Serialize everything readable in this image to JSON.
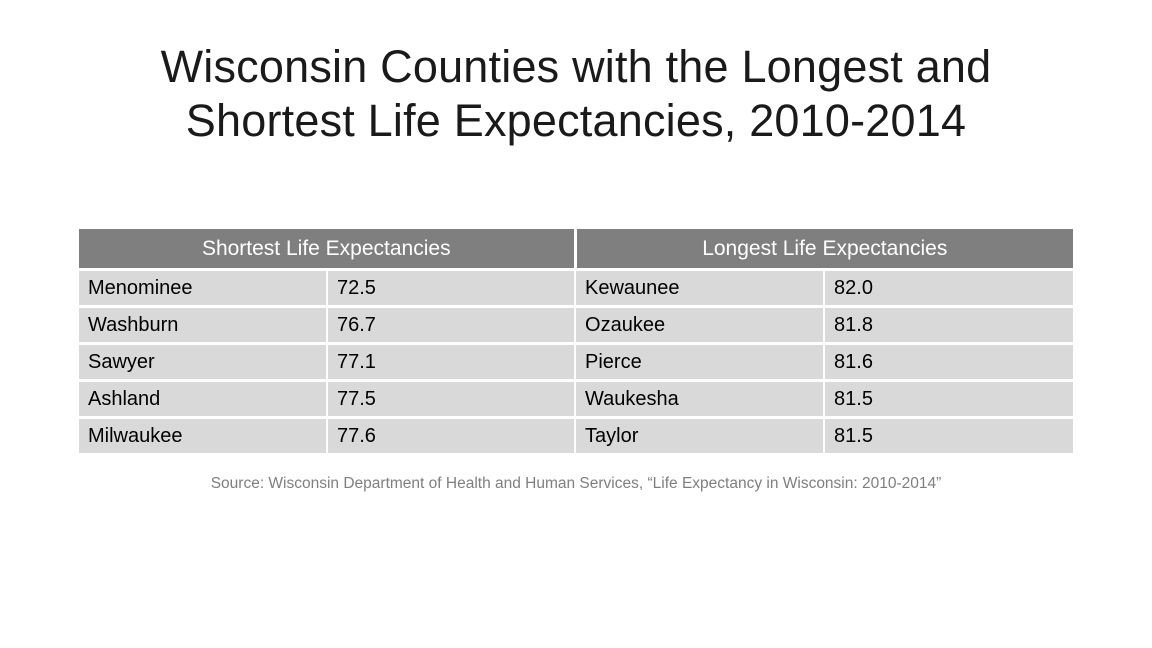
{
  "title": {
    "line1": "Wisconsin Counties with the Longest and",
    "line2": "Shortest Life Expectancies, 2010-2014"
  },
  "table": {
    "headers": [
      "Shortest Life Expectancies",
      "Longest Life Expectancies"
    ],
    "rows": [
      {
        "short_county": "Menominee",
        "short_value": "72.5",
        "long_county": "Kewaunee",
        "long_value": "82.0"
      },
      {
        "short_county": "Washburn",
        "short_value": "76.7",
        "long_county": "Ozaukee",
        "long_value": "81.8"
      },
      {
        "short_county": "Sawyer",
        "short_value": "77.1",
        "long_county": "Pierce",
        "long_value": "81.6"
      },
      {
        "short_county": "Ashland",
        "short_value": "77.5",
        "long_county": "Waukesha",
        "long_value": "81.5"
      },
      {
        "short_county": "Milwaukee",
        "short_value": "77.6",
        "long_county": "Taylor",
        "long_value": "81.5"
      }
    ]
  },
  "source": "Source: Wisconsin Department of Health and Human Services, “Life Expectancy in Wisconsin: 2010-2014”",
  "colors": {
    "header_bg": "#7f7f7f",
    "cell_bg": "#d9d9d9",
    "source_text": "#7f7f7f"
  }
}
